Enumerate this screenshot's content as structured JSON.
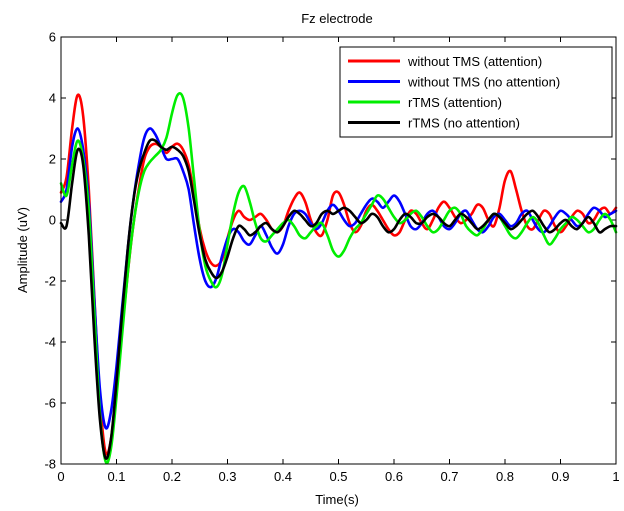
{
  "chart_data": {
    "type": "line",
    "title": "Fz electrode",
    "xlabel": "Time(s)",
    "ylabel": "Amplitude (uV)",
    "xlim": [
      0,
      1
    ],
    "ylim": [
      -8,
      6
    ],
    "xticks": [
      0,
      0.1,
      0.2,
      0.3,
      0.4,
      0.5,
      0.6,
      0.7,
      0.8,
      0.9,
      1
    ],
    "xtick_labels": [
      "0",
      "0.1",
      "0.2",
      "0.3",
      "0.4",
      "0.5",
      "0.6",
      "0.7",
      "0.8",
      "0.9",
      "1"
    ],
    "yticks": [
      -8,
      -6,
      -4,
      -2,
      0,
      2,
      4,
      6
    ],
    "ytick_labels": [
      "-8",
      "-6",
      "-4",
      "-2",
      "0",
      "2",
      "4",
      "6"
    ],
    "grid": false,
    "legend_position": "top-right",
    "series": [
      {
        "name": "without TMS (attention)",
        "color": "#ff0000",
        "x": [
          0,
          0.01,
          0.02,
          0.03,
          0.04,
          0.05,
          0.06,
          0.07,
          0.08,
          0.09,
          0.1,
          0.11,
          0.12,
          0.13,
          0.14,
          0.15,
          0.16,
          0.17,
          0.18,
          0.19,
          0.2,
          0.21,
          0.22,
          0.23,
          0.24,
          0.25,
          0.26,
          0.27,
          0.28,
          0.29,
          0.3,
          0.31,
          0.32,
          0.33,
          0.34,
          0.35,
          0.36,
          0.37,
          0.38,
          0.39,
          0.4,
          0.41,
          0.42,
          0.43,
          0.44,
          0.45,
          0.46,
          0.47,
          0.48,
          0.49,
          0.5,
          0.51,
          0.52,
          0.53,
          0.54,
          0.55,
          0.56,
          0.57,
          0.58,
          0.59,
          0.6,
          0.61,
          0.62,
          0.63,
          0.64,
          0.65,
          0.66,
          0.67,
          0.68,
          0.69,
          0.7,
          0.71,
          0.72,
          0.73,
          0.74,
          0.75,
          0.76,
          0.77,
          0.78,
          0.79,
          0.8,
          0.81,
          0.82,
          0.83,
          0.84,
          0.85,
          0.86,
          0.87,
          0.88,
          0.89,
          0.9,
          0.91,
          0.92,
          0.93,
          0.94,
          0.95,
          0.96,
          0.97,
          0.98,
          0.99,
          1.0
        ],
        "y": [
          0.9,
          1.4,
          3.0,
          4.1,
          3.4,
          1.0,
          -2.5,
          -5.8,
          -7.6,
          -7.2,
          -5.5,
          -3.6,
          -1.8,
          -0.2,
          1.0,
          2.0,
          2.4,
          2.5,
          2.4,
          2.2,
          2.4,
          2.5,
          2.3,
          1.8,
          0.8,
          -0.3,
          -1.0,
          -1.4,
          -1.5,
          -1.3,
          -0.6,
          0.0,
          0.3,
          0.1,
          0.0,
          0.1,
          0.2,
          0.0,
          -0.3,
          -0.4,
          -0.2,
          0.3,
          0.7,
          0.9,
          0.6,
          0.0,
          -0.4,
          -0.5,
          0.0,
          0.8,
          0.9,
          0.5,
          -0.1,
          -0.4,
          -0.2,
          0.3,
          0.5,
          0.3,
          0.0,
          -0.3,
          -0.5,
          -0.4,
          0.0,
          0.3,
          0.2,
          -0.1,
          -0.3,
          0.0,
          0.4,
          0.6,
          0.4,
          0.1,
          -0.1,
          0.0,
          0.2,
          0.5,
          0.4,
          0.0,
          -0.2,
          0.4,
          1.3,
          1.6,
          1.0,
          0.3,
          -0.2,
          -0.3,
          0.0,
          0.3,
          0.2,
          -0.2,
          -0.4,
          -0.2,
          0.1,
          0.3,
          0.2,
          -0.1,
          0.0,
          0.3,
          0.4,
          0.2,
          0.4
        ]
      },
      {
        "name": "without TMS (no attention)",
        "color": "#0000ff",
        "x": [
          0,
          0.01,
          0.02,
          0.03,
          0.04,
          0.05,
          0.06,
          0.07,
          0.08,
          0.09,
          0.1,
          0.11,
          0.12,
          0.13,
          0.14,
          0.15,
          0.16,
          0.17,
          0.18,
          0.19,
          0.2,
          0.21,
          0.22,
          0.23,
          0.24,
          0.25,
          0.26,
          0.27,
          0.28,
          0.29,
          0.3,
          0.31,
          0.32,
          0.33,
          0.34,
          0.35,
          0.36,
          0.37,
          0.38,
          0.39,
          0.4,
          0.41,
          0.42,
          0.43,
          0.44,
          0.45,
          0.46,
          0.47,
          0.48,
          0.49,
          0.5,
          0.51,
          0.52,
          0.53,
          0.54,
          0.55,
          0.56,
          0.57,
          0.58,
          0.59,
          0.6,
          0.61,
          0.62,
          0.63,
          0.64,
          0.65,
          0.66,
          0.67,
          0.68,
          0.69,
          0.7,
          0.71,
          0.72,
          0.73,
          0.74,
          0.75,
          0.76,
          0.77,
          0.78,
          0.79,
          0.8,
          0.81,
          0.82,
          0.83,
          0.84,
          0.85,
          0.86,
          0.87,
          0.88,
          0.89,
          0.9,
          0.91,
          0.92,
          0.93,
          0.94,
          0.95,
          0.96,
          0.97,
          0.98,
          0.99,
          1.0
        ],
        "y": [
          0.6,
          1.0,
          2.4,
          3.0,
          2.3,
          0.6,
          -2.6,
          -5.5,
          -6.8,
          -6.3,
          -4.8,
          -2.9,
          -1.0,
          0.6,
          1.8,
          2.7,
          3.0,
          2.8,
          2.4,
          2.0,
          2.0,
          2.0,
          1.6,
          1.0,
          -0.2,
          -1.3,
          -2.0,
          -2.2,
          -1.9,
          -1.2,
          -0.6,
          -0.3,
          -0.4,
          -0.7,
          -0.8,
          -0.5,
          -0.2,
          -0.5,
          -0.9,
          -1.1,
          -0.8,
          -0.2,
          0.2,
          0.3,
          0.2,
          -0.1,
          -0.3,
          -0.1,
          0.3,
          0.5,
          0.3,
          0.0,
          -0.2,
          -0.1,
          0.2,
          0.5,
          0.7,
          0.6,
          0.4,
          0.6,
          0.8,
          0.6,
          0.2,
          -0.2,
          -0.3,
          -0.1,
          0.2,
          0.3,
          0.1,
          -0.2,
          -0.3,
          -0.1,
          0.2,
          0.3,
          0.0,
          -0.3,
          -0.4,
          -0.2,
          0.1,
          0.2,
          0.0,
          -0.2,
          -0.1,
          0.2,
          0.3,
          0.0,
          -0.3,
          -0.4,
          -0.2,
          0.1,
          0.3,
          0.2,
          0.0,
          -0.2,
          -0.1,
          0.2,
          0.4,
          0.3,
          0.1,
          0.2,
          0.3
        ]
      },
      {
        "name": "rTMS (attention)",
        "color": "#00ee00",
        "x": [
          0,
          0.01,
          0.02,
          0.03,
          0.04,
          0.05,
          0.06,
          0.07,
          0.08,
          0.09,
          0.1,
          0.11,
          0.12,
          0.13,
          0.14,
          0.15,
          0.16,
          0.17,
          0.18,
          0.19,
          0.2,
          0.21,
          0.22,
          0.23,
          0.24,
          0.25,
          0.26,
          0.27,
          0.28,
          0.29,
          0.3,
          0.31,
          0.32,
          0.33,
          0.34,
          0.35,
          0.36,
          0.37,
          0.38,
          0.39,
          0.4,
          0.41,
          0.42,
          0.43,
          0.44,
          0.45,
          0.46,
          0.47,
          0.48,
          0.49,
          0.5,
          0.51,
          0.52,
          0.53,
          0.54,
          0.55,
          0.56,
          0.57,
          0.58,
          0.59,
          0.6,
          0.61,
          0.62,
          0.63,
          0.64,
          0.65,
          0.66,
          0.67,
          0.68,
          0.69,
          0.7,
          0.71,
          0.72,
          0.73,
          0.74,
          0.75,
          0.76,
          0.77,
          0.78,
          0.79,
          0.8,
          0.81,
          0.82,
          0.83,
          0.84,
          0.85,
          0.86,
          0.87,
          0.88,
          0.89,
          0.9,
          0.91,
          0.92,
          0.93,
          0.94,
          0.95,
          0.96,
          0.97,
          0.98,
          0.99,
          1.0
        ],
        "y": [
          1.2,
          0.8,
          1.8,
          2.6,
          2.0,
          0.3,
          -3.0,
          -6.3,
          -7.9,
          -7.5,
          -5.8,
          -3.8,
          -1.8,
          -0.2,
          0.9,
          1.6,
          1.9,
          2.1,
          2.3,
          2.7,
          3.5,
          4.1,
          4.0,
          3.0,
          1.3,
          -0.4,
          -1.5,
          -2.0,
          -2.2,
          -1.8,
          -0.8,
          0.2,
          0.9,
          1.1,
          0.6,
          -0.1,
          -0.6,
          -0.7,
          -0.5,
          -0.3,
          -0.1,
          0.0,
          -0.2,
          -0.5,
          -0.6,
          -0.4,
          -0.2,
          -0.1,
          -0.5,
          -1.0,
          -1.2,
          -1.0,
          -0.6,
          -0.3,
          -0.1,
          0.2,
          0.5,
          0.8,
          0.7,
          0.4,
          0.1,
          -0.1,
          0.0,
          0.2,
          0.3,
          0.1,
          -0.2,
          -0.4,
          -0.3,
          0.0,
          0.3,
          0.4,
          0.2,
          -0.2,
          -0.4,
          -0.5,
          -0.3,
          0.0,
          0.2,
          0.1,
          -0.2,
          -0.5,
          -0.6,
          -0.4,
          -0.1,
          0.1,
          -0.1,
          -0.5,
          -0.8,
          -0.6,
          -0.3,
          -0.1,
          0.1,
          0.0,
          -0.2,
          -0.4,
          -0.3,
          0.0,
          0.2,
          0.0,
          -0.4
        ]
      },
      {
        "name": "rTMS (no attention)",
        "color": "#000000",
        "x": [
          0,
          0.01,
          0.02,
          0.03,
          0.04,
          0.05,
          0.06,
          0.07,
          0.08,
          0.09,
          0.1,
          0.11,
          0.12,
          0.13,
          0.14,
          0.15,
          0.16,
          0.17,
          0.18,
          0.19,
          0.2,
          0.21,
          0.22,
          0.23,
          0.24,
          0.25,
          0.26,
          0.27,
          0.28,
          0.29,
          0.3,
          0.31,
          0.32,
          0.33,
          0.34,
          0.35,
          0.36,
          0.37,
          0.38,
          0.39,
          0.4,
          0.41,
          0.42,
          0.43,
          0.44,
          0.45,
          0.46,
          0.47,
          0.48,
          0.49,
          0.5,
          0.51,
          0.52,
          0.53,
          0.54,
          0.55,
          0.56,
          0.57,
          0.58,
          0.59,
          0.6,
          0.61,
          0.62,
          0.63,
          0.64,
          0.65,
          0.66,
          0.67,
          0.68,
          0.69,
          0.7,
          0.71,
          0.72,
          0.73,
          0.74,
          0.75,
          0.76,
          0.77,
          0.78,
          0.79,
          0.8,
          0.81,
          0.82,
          0.83,
          0.84,
          0.85,
          0.86,
          0.87,
          0.88,
          0.89,
          0.9,
          0.91,
          0.92,
          0.93,
          0.94,
          0.95,
          0.96,
          0.97,
          0.98,
          0.99,
          1.0
        ],
        "y": [
          -0.1,
          -0.2,
          1.2,
          2.3,
          1.8,
          -0.5,
          -3.8,
          -6.5,
          -7.8,
          -7.2,
          -5.3,
          -3.1,
          -1.0,
          0.6,
          1.6,
          2.2,
          2.6,
          2.6,
          2.4,
          2.3,
          2.4,
          2.3,
          2.1,
          1.6,
          0.6,
          -0.5,
          -1.3,
          -1.7,
          -1.9,
          -1.7,
          -1.2,
          -0.6,
          -0.2,
          -0.3,
          -0.5,
          -0.4,
          -0.2,
          -0.1,
          -0.3,
          -0.4,
          -0.2,
          0.1,
          0.3,
          0.2,
          0.0,
          -0.2,
          -0.1,
          0.2,
          0.3,
          0.2,
          0.3,
          0.4,
          0.3,
          0.1,
          -0.1,
          0.0,
          0.2,
          0.1,
          -0.2,
          -0.4,
          -0.3,
          0.0,
          0.2,
          0.1,
          -0.1,
          -0.1,
          0.1,
          0.2,
          0.1,
          -0.1,
          -0.2,
          0.0,
          0.2,
          0.1,
          -0.1,
          -0.3,
          -0.2,
          0.0,
          0.2,
          0.1,
          -0.1,
          -0.3,
          -0.2,
          0.0,
          0.2,
          0.3,
          0.1,
          -0.2,
          -0.4,
          -0.3,
          -0.1,
          0.0,
          -0.2,
          -0.3,
          -0.1,
          0.1,
          -0.1,
          -0.4,
          -0.3,
          -0.2,
          -0.2
        ]
      }
    ]
  }
}
